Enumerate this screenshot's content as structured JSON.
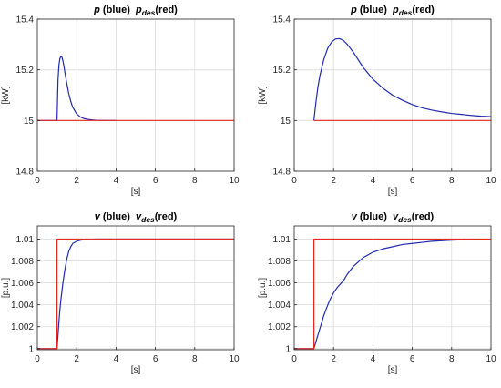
{
  "chart_data": [
    {
      "type": "line",
      "title": {
        "main": "p",
        "main_suffix": " (blue)",
        "ref": "p",
        "ref_sub": "des",
        "ref_suffix": "(red)"
      },
      "xlabel": "[s]",
      "ylabel": "[kW]",
      "xlim": [
        0,
        10
      ],
      "ylim": [
        14.8,
        15.4
      ],
      "xticks": [
        "0",
        "2",
        "4",
        "6",
        "8",
        "10"
      ],
      "yticks": [
        "14.8",
        "15",
        "15.2",
        "15.4"
      ],
      "grid": true,
      "series": [
        {
          "color": "#1f2bb0",
          "x": [
            0,
            1,
            1.05,
            1.1,
            1.15,
            1.2,
            1.25,
            1.3,
            1.35,
            1.4,
            1.5,
            1.6,
            1.7,
            1.8,
            2,
            2.2,
            2.4,
            2.6,
            2.8,
            3,
            3.5,
            4
          ],
          "y": [
            15,
            15,
            15.16,
            15.22,
            15.245,
            15.253,
            15.25,
            15.235,
            15.215,
            15.19,
            15.145,
            15.105,
            15.075,
            15.052,
            15.026,
            15.013,
            15.007,
            15.004,
            15.002,
            15.001,
            15,
            15
          ]
        },
        {
          "color": "#e8271e",
          "x": [
            0,
            10
          ],
          "y": [
            15,
            15
          ]
        }
      ]
    },
    {
      "type": "line",
      "title": {
        "main": "p",
        "main_suffix": " (blue)",
        "ref": "p",
        "ref_sub": "des",
        "ref_suffix": "(red)"
      },
      "xlabel": "[s]",
      "ylabel": "[kW]",
      "xlim": [
        0,
        10
      ],
      "ylim": [
        14.8,
        15.4
      ],
      "xticks": [
        "0",
        "2",
        "4",
        "6",
        "8",
        "10"
      ],
      "yticks": [
        "14.8",
        "15",
        "15.2",
        "15.4"
      ],
      "grid": true,
      "series": [
        {
          "color": "#1f2bb0",
          "x": [
            1,
            1.1,
            1.2,
            1.3,
            1.5,
            1.7,
            1.9,
            2.1,
            2.3,
            2.5,
            2.7,
            3,
            3.5,
            4,
            4.5,
            5,
            5.5,
            6,
            6.5,
            7,
            7.5,
            8,
            8.5,
            9,
            9.5,
            10
          ],
          "y": [
            15,
            15.07,
            15.13,
            15.175,
            15.24,
            15.285,
            15.31,
            15.322,
            15.323,
            15.316,
            15.3,
            15.27,
            15.21,
            15.163,
            15.128,
            15.1,
            15.08,
            15.063,
            15.05,
            15.041,
            15.034,
            15.028,
            15.024,
            15.02,
            15.017,
            15.015
          ]
        },
        {
          "color": "#e8271e",
          "x": [
            1,
            10
          ],
          "y": [
            15,
            15
          ]
        }
      ]
    },
    {
      "type": "line",
      "title": {
        "main": "v",
        "main_suffix": " (blue)",
        "ref": "v",
        "ref_sub": "des",
        "ref_suffix": "(red)"
      },
      "xlabel": "[s]",
      "ylabel": "[p.u.]",
      "xlim": [
        0,
        10
      ],
      "ylim": [
        0.9999,
        1.0112
      ],
      "xticks": [
        "0",
        "2",
        "4",
        "6",
        "8",
        "10"
      ],
      "yticks": [
        "1",
        "1.002",
        "1.004",
        "1.006",
        "1.008",
        "1.01"
      ],
      "grid": true,
      "series": [
        {
          "color": "#1f2bb0",
          "x": [
            0,
            1,
            1.05,
            1.1,
            1.15,
            1.2,
            1.3,
            1.4,
            1.5,
            1.6,
            1.7,
            1.8,
            2,
            2.2,
            2.4,
            2.6,
            3,
            3.5,
            4,
            10
          ],
          "y": [
            1,
            1,
            1.0012,
            1.0025,
            1.0036,
            1.0045,
            1.006,
            1.0072,
            1.0082,
            1.0089,
            1.0093,
            1.0096,
            1.0098,
            1.0099,
            1.00995,
            1.00998,
            1.01,
            1.01,
            1.01,
            1.01
          ]
        },
        {
          "color": "#e8271e",
          "x": [
            0,
            1,
            1,
            10
          ],
          "y": [
            1,
            1,
            1.01,
            1.01
          ]
        }
      ]
    },
    {
      "type": "line",
      "title": {
        "main": "v",
        "main_suffix": " (blue)",
        "ref": "v",
        "ref_sub": "des",
        "ref_suffix": "(red)"
      },
      "xlabel": "[s]",
      "ylabel": "[p.u.]",
      "xlim": [
        0,
        10
      ],
      "ylim": [
        0.9999,
        1.0112
      ],
      "xticks": [
        "0",
        "2",
        "4",
        "6",
        "8",
        "10"
      ],
      "yticks": [
        "1",
        "1.002",
        "1.004",
        "1.006",
        "1.008",
        "1.01"
      ],
      "grid": true,
      "series": [
        {
          "color": "#1f2bb0",
          "x": [
            0,
            1,
            1.1,
            1.2,
            1.3,
            1.4,
            1.5,
            1.6,
            1.8,
            2,
            2.2,
            2.4,
            2.5,
            2.7,
            3,
            3.5,
            4,
            4.5,
            5,
            5.5,
            6,
            6.5,
            7,
            7.5,
            8,
            8.5,
            9,
            9.5,
            10
          ],
          "y": [
            1,
            1,
            1.0006,
            1.0012,
            1.0018,
            1.0024,
            1.003,
            1.0035,
            1.0044,
            1.0051,
            1.0056,
            1.006,
            1.0062,
            1.0068,
            1.0075,
            1.0083,
            1.0088,
            1.0091,
            1.0093,
            1.0095,
            1.0096,
            1.0097,
            1.0098,
            1.00985,
            1.0099,
            1.00993,
            1.00995,
            1.00997,
            1.00998
          ]
        },
        {
          "color": "#e8271e",
          "x": [
            0,
            1,
            1,
            10
          ],
          "y": [
            1,
            1,
            1.01,
            1.01
          ]
        }
      ]
    }
  ]
}
